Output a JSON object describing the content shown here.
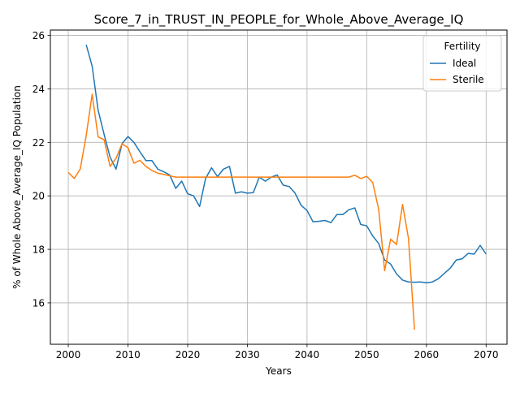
{
  "chart_data": {
    "type": "line",
    "title": "Score_7_in_TRUST_IN_PEOPLE_for_Whole_Above_Average_IQ",
    "xlabel": "Years",
    "ylabel": "% of Whole Above_Average_IQ Population",
    "xlim": [
      1997,
      2073.5
    ],
    "ylim": [
      14.45,
      26.2
    ],
    "xticks": [
      2000,
      2010,
      2020,
      2030,
      2040,
      2050,
      2060,
      2070
    ],
    "yticks": [
      16,
      18,
      20,
      22,
      24,
      26
    ],
    "grid": true,
    "legend": {
      "title": "Fertility",
      "placement": "top-right"
    },
    "series": [
      {
        "name": "Ideal",
        "color": "#1f77b4",
        "x": [
          2003,
          2004,
          2005,
          2006,
          2007,
          2008,
          2009,
          2010,
          2011,
          2012,
          2013,
          2014,
          2015,
          2016,
          2017,
          2018,
          2019,
          2020,
          2021,
          2022,
          2023,
          2024,
          2025,
          2026,
          2027,
          2028,
          2029,
          2030,
          2031,
          2032,
          2033,
          2034,
          2035,
          2036,
          2037,
          2038,
          2039,
          2040,
          2041,
          2042,
          2043,
          2044,
          2045,
          2046,
          2047,
          2048,
          2049,
          2050,
          2051,
          2052,
          2053,
          2054,
          2055,
          2056,
          2057,
          2058,
          2059,
          2060,
          2061,
          2062,
          2063,
          2064,
          2065,
          2066,
          2067,
          2068,
          2069,
          2070
        ],
        "values": [
          25.65,
          24.85,
          23.2,
          22.3,
          21.45,
          21.0,
          21.95,
          22.22,
          22.0,
          21.65,
          21.32,
          21.32,
          21.0,
          20.9,
          20.78,
          20.28,
          20.55,
          20.08,
          20.0,
          19.6,
          20.65,
          21.05,
          20.72,
          21.0,
          21.1,
          20.1,
          20.15,
          20.1,
          20.12,
          20.7,
          20.55,
          20.7,
          20.78,
          20.4,
          20.35,
          20.1,
          19.65,
          19.45,
          19.03,
          19.05,
          19.08,
          19.0,
          19.3,
          19.3,
          19.48,
          19.55,
          18.93,
          18.88,
          18.5,
          18.22,
          17.6,
          17.45,
          17.08,
          16.85,
          16.78,
          16.77,
          16.78,
          16.75,
          16.78,
          16.9,
          17.1,
          17.3,
          17.6,
          17.65,
          17.85,
          17.82,
          18.15,
          17.82
        ]
      },
      {
        "name": "Sterile",
        "color": "#ff7f0e",
        "x": [
          2000,
          2001,
          2002,
          2003,
          2004,
          2005,
          2006,
          2007,
          2008,
          2009,
          2010,
          2011,
          2012,
          2013,
          2014,
          2015,
          2016,
          2017,
          2018,
          2019,
          2020,
          2021,
          2022,
          2023,
          2024,
          2025,
          2026,
          2027,
          2028,
          2029,
          2030,
          2031,
          2032,
          2033,
          2034,
          2035,
          2036,
          2037,
          2038,
          2039,
          2040,
          2041,
          2042,
          2043,
          2044,
          2045,
          2046,
          2047,
          2048,
          2049,
          2050,
          2051,
          2052,
          2053,
          2054,
          2055,
          2056,
          2057,
          2058
        ],
        "values": [
          20.88,
          20.65,
          21.0,
          22.25,
          23.8,
          22.2,
          22.1,
          21.1,
          21.4,
          21.95,
          21.8,
          21.22,
          21.33,
          21.1,
          20.95,
          20.85,
          20.8,
          20.75,
          20.7,
          20.7,
          20.7,
          20.7,
          20.7,
          20.7,
          20.7,
          20.7,
          20.7,
          20.7,
          20.7,
          20.7,
          20.7,
          20.7,
          20.7,
          20.7,
          20.7,
          20.7,
          20.7,
          20.7,
          20.7,
          20.7,
          20.7,
          20.7,
          20.7,
          20.7,
          20.7,
          20.7,
          20.7,
          20.7,
          20.77,
          20.65,
          20.73,
          20.5,
          19.5,
          17.2,
          18.38,
          18.18,
          19.68,
          18.4,
          15.0
        ]
      }
    ]
  }
}
